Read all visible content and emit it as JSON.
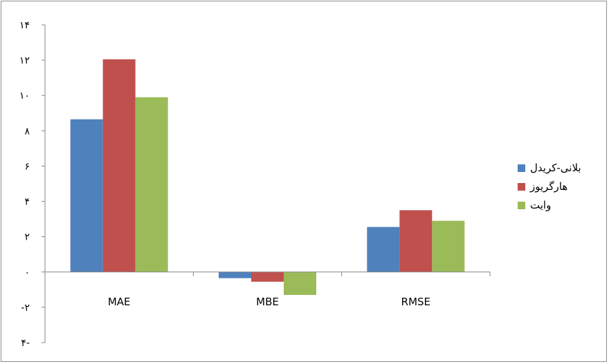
{
  "chart_data": {
    "type": "bar",
    "categories": [
      "MAE",
      "MBE",
      "RMSE"
    ],
    "series": [
      {
        "name": "بلانی-کریدل",
        "values": [
          8.65,
          -0.35,
          2.55
        ],
        "color": "#4F81BD"
      },
      {
        "name": "هارگریوز",
        "values": [
          12.05,
          -0.55,
          3.5
        ],
        "color": "#C0504D"
      },
      {
        "name": "وایت",
        "values": [
          9.9,
          -1.3,
          2.9
        ],
        "color": "#9BBB59"
      }
    ],
    "ylim": [
      -4,
      14
    ],
    "yticks": [
      14,
      12,
      10,
      8,
      6,
      4,
      2,
      0,
      -2,
      -4
    ],
    "ytick_labels": [
      "۱۴",
      "۱۲",
      "۱۰",
      "۸",
      "۶",
      "۴",
      "۲",
      "۰",
      "-۲",
      "۴-"
    ],
    "legend_position": "right",
    "grid": false
  }
}
